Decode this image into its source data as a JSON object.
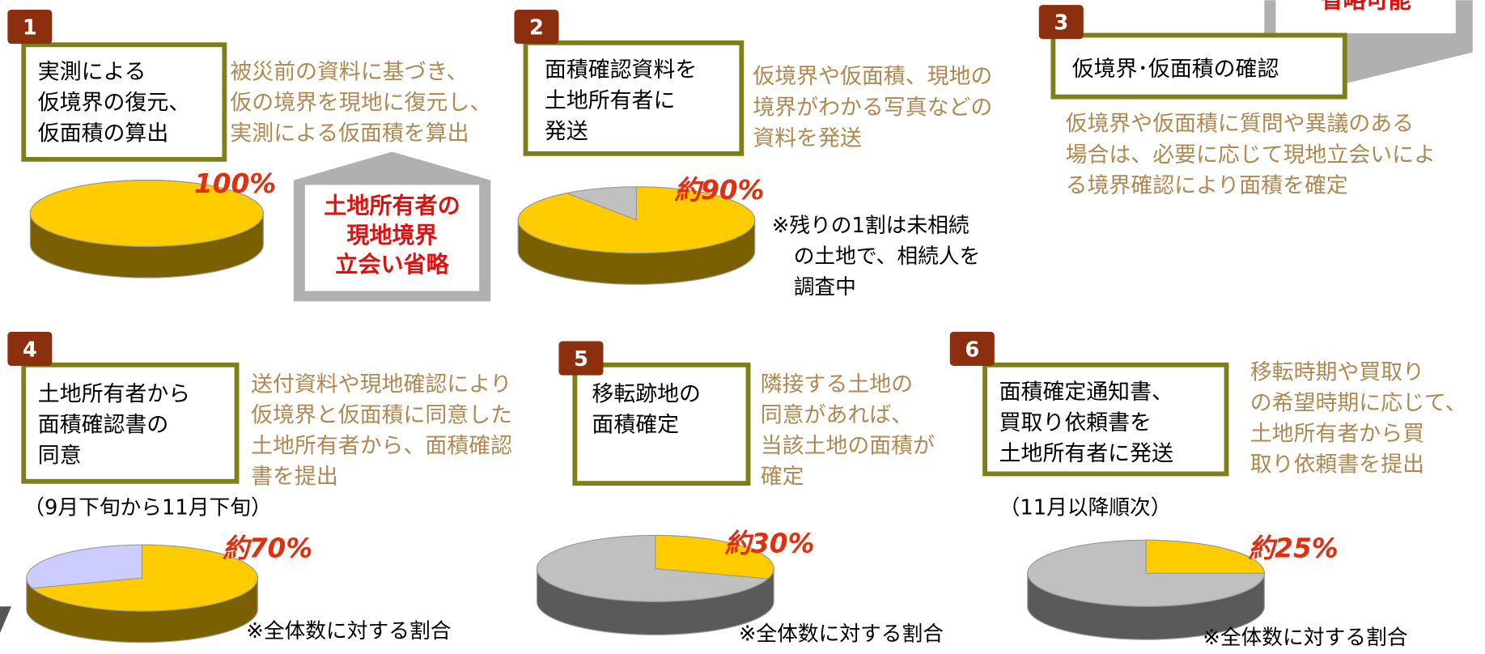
{
  "steps": [
    {
      "number": "1",
      "title": [
        "実測による",
        "仮境界の復元、",
        "仮面積の算出"
      ],
      "description": [
        "被災前の資料に基づき、",
        "仮の境界を現地に復元し、",
        "実測による仮面積を算出"
      ],
      "pie": {
        "value": 100,
        "label": "100%",
        "colors": [
          "#ffcc00",
          "#c0c0c0"
        ],
        "side_color": "#7a6000"
      }
    },
    {
      "number": "2",
      "title": [
        "面積確認資料を",
        "土地所有者に",
        "発送"
      ],
      "description": [
        "仮境界や仮面積、現地の",
        "境界がわかる写真などの",
        "資料を発送"
      ],
      "pie": {
        "value": 90,
        "label": "約90%",
        "colors": [
          "#ffcc00",
          "#c0c0c0"
        ],
        "side_color": "#7a6000"
      },
      "note": [
        "※残りの1割は未相続",
        "の土地で、相続人を",
        "調査中"
      ]
    },
    {
      "number": "3",
      "title": [
        "仮境界･仮面積の確認"
      ],
      "description": [
        "仮境界や仮面積に質問や異議のある",
        "場合は、必要に応じて現地立会いによ",
        "る境界確認により面積を確定"
      ]
    },
    {
      "number": "4",
      "title": [
        "土地所有者から",
        "面積確認書の",
        "同意"
      ],
      "description": [
        "送付資料や現地確認により",
        "仮境界と仮面積に同意した",
        "土地所有者から、面積確認",
        "書を提出"
      ],
      "period": "（9月下旬から11月下旬）",
      "pie": {
        "value": 70,
        "label": "約70%",
        "colors": [
          "#ffcc00",
          "#ccccff"
        ],
        "side_color": "#7a6000"
      },
      "note": [
        "※全体数に対する割合"
      ]
    },
    {
      "number": "5",
      "title": [
        "移転跡地の",
        "面積確定"
      ],
      "description": [
        "隣接する土地の",
        "同意があれば、",
        "当該土地の面積が",
        "確定"
      ],
      "pie": {
        "value": 30,
        "label": "約30%",
        "colors": [
          "#ffcc00",
          "#c0c0c0"
        ],
        "side_color": "#5a5a5a"
      },
      "note": [
        "※全体数に対する割合"
      ]
    },
    {
      "number": "6",
      "title": [
        "面積確定通知書、",
        "買取り依頼書を",
        "土地所有者に発送"
      ],
      "description": [
        "移転時期や買取り",
        "の希望時期に応じて、",
        "土地所有者から買",
        "取り依頼書を提出"
      ],
      "period": "（11月以降順次）",
      "pie": {
        "value": 25,
        "label": "約25%",
        "colors": [
          "#ffcc00",
          "#c0c0c0"
        ],
        "side_color": "#5a5a5a"
      },
      "note": [
        "※全体数に対する割合"
      ]
    }
  ],
  "callouts": [
    {
      "lines": [
        "土地所有者の",
        "現地境界",
        "立会い省略"
      ]
    },
    {
      "lines": [
        "省略可能"
      ]
    }
  ]
}
